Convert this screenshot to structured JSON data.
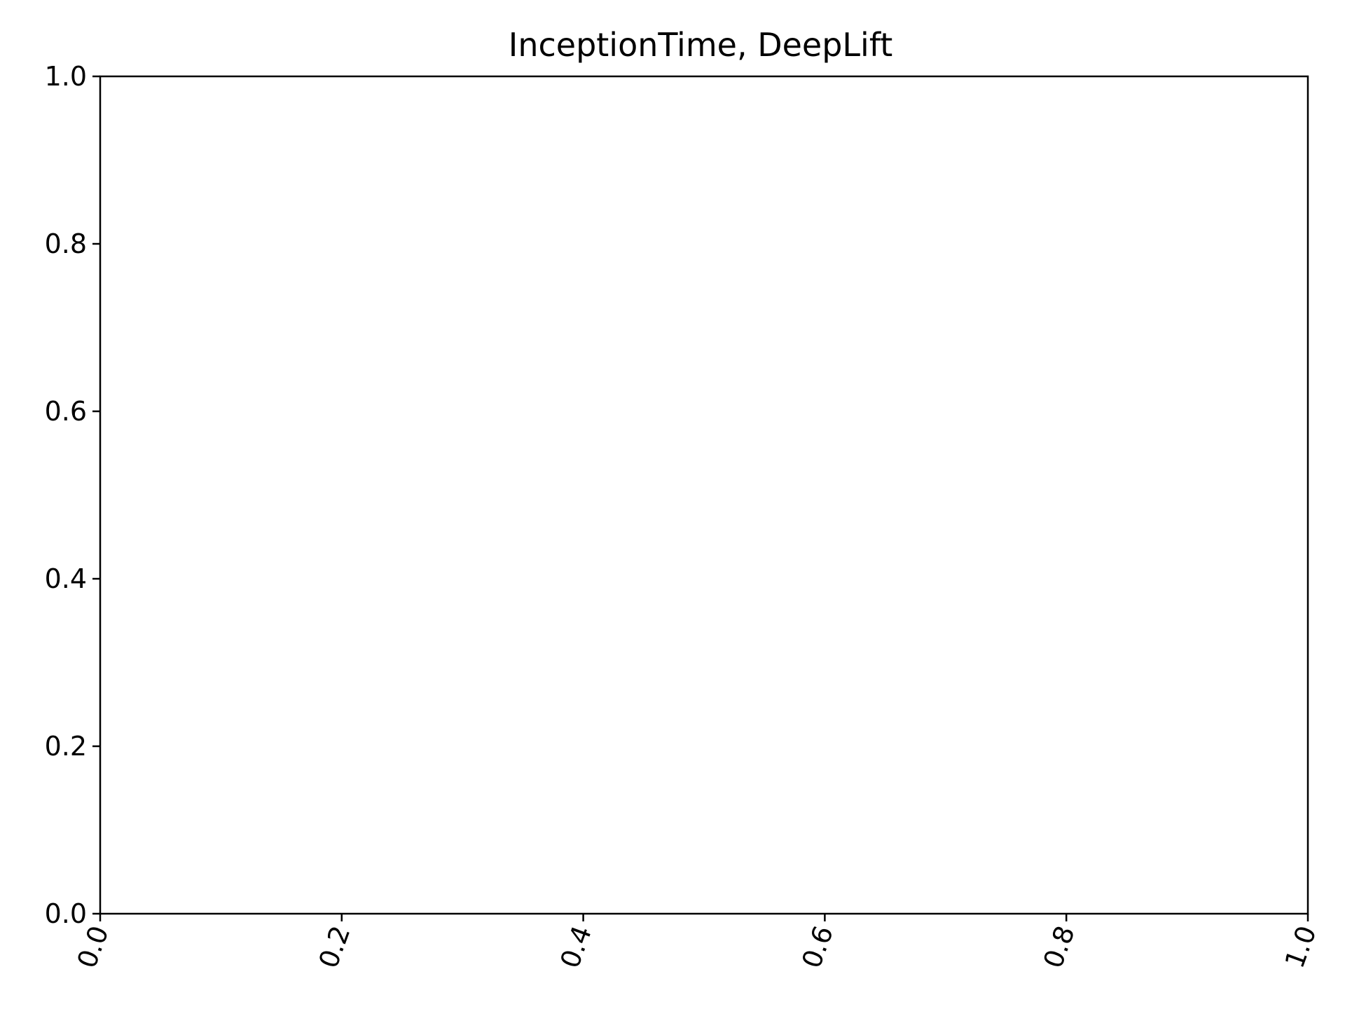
{
  "chart_data": {
    "type": "line",
    "title": "InceptionTime, DeepLift",
    "xlabel": "",
    "ylabel": "",
    "xlim": [
      0.0,
      1.0
    ],
    "ylim": [
      0.0,
      1.0
    ],
    "x_ticks": [
      "0.0",
      "0.2",
      "0.4",
      "0.6",
      "0.8",
      "1.0"
    ],
    "y_ticks": [
      "0.0",
      "0.2",
      "0.4",
      "0.6",
      "0.8",
      "1.0"
    ],
    "x_tick_rotation_deg": -70,
    "grid": false,
    "series": []
  }
}
